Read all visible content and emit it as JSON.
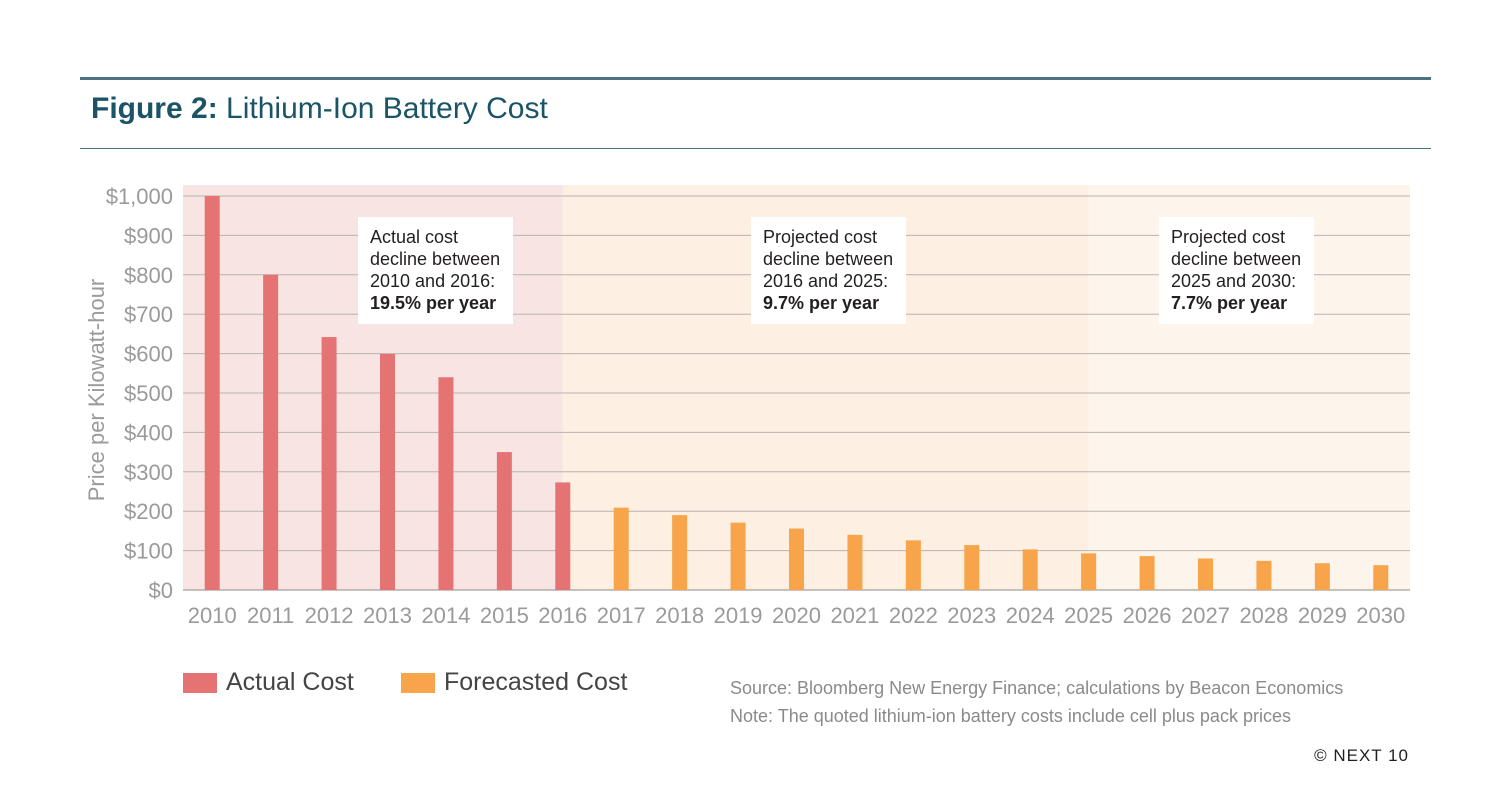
{
  "header": {
    "title_lead": "Figure 2:",
    "title_rest": "Lithium-Ion Battery Cost"
  },
  "colors": {
    "actual": "#e57373",
    "forecast": "#f7a44a",
    "band_actual": "#f8e4e2",
    "band_forecast_1": "#fdefe1",
    "band_forecast_2": "#fdf4eb",
    "grid": "#b9b3ae",
    "tick": "#9a9a9a",
    "rule": "#4d7383"
  },
  "chart_data": {
    "type": "bar",
    "ylabel": "Price per Kilowatt-hour",
    "ylim": [
      0,
      1000
    ],
    "yticks": [
      "$0",
      "$100",
      "$200",
      "$300",
      "$400",
      "$500",
      "$600",
      "$700",
      "$800",
      "$900",
      "$1,000"
    ],
    "categories": [
      "2010",
      "2011",
      "2012",
      "2013",
      "2014",
      "2015",
      "2016",
      "2017",
      "2018",
      "2019",
      "2020",
      "2021",
      "2022",
      "2023",
      "2024",
      "2025",
      "2026",
      "2027",
      "2028",
      "2029",
      "2030"
    ],
    "series": [
      {
        "name": "Actual Cost",
        "values": [
          1000,
          800,
          642,
          599,
          540,
          350,
          273,
          null,
          null,
          null,
          null,
          null,
          null,
          null,
          null,
          null,
          null,
          null,
          null,
          null,
          null
        ]
      },
      {
        "name": "Forecasted Cost",
        "values": [
          null,
          null,
          null,
          null,
          null,
          null,
          null,
          209,
          190,
          171,
          156,
          140,
          126,
          114,
          103,
          93,
          86,
          80,
          74,
          68,
          63
        ]
      }
    ],
    "grid": true,
    "legend": "bottom-left",
    "shaded_periods": [
      {
        "from": "2010",
        "to": "2016"
      },
      {
        "from": "2016",
        "to": "2025"
      },
      {
        "from": "2025",
        "to": "2030"
      }
    ]
  },
  "annotations": [
    {
      "lines": [
        "Actual cost",
        "decline between",
        "2010 and 2016:"
      ],
      "strong": "19.5% per year"
    },
    {
      "lines": [
        "Projected cost",
        "decline between",
        "2016 and 2025:"
      ],
      "strong": "9.7% per year"
    },
    {
      "lines": [
        "Projected cost",
        "decline between",
        "2025 and 2030:"
      ],
      "strong": "7.7% per year"
    }
  ],
  "legend": {
    "actual": "Actual Cost",
    "forecast": "Forecasted Cost"
  },
  "notes": {
    "source": "Source: Bloomberg New Energy Finance; calculations by Beacon Economics",
    "note": "Note: The quoted lithium-ion battery costs include cell plus pack prices"
  },
  "copyright": "© NEXT 10"
}
